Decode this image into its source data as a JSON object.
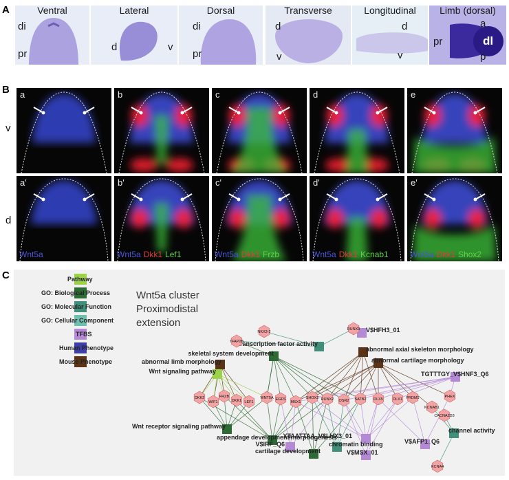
{
  "panel_letters": {
    "a": "A",
    "b": "B",
    "c": "C"
  },
  "panelA": {
    "tiles": [
      {
        "title": "Ventral",
        "labels": [
          "di",
          "pr"
        ]
      },
      {
        "title": "Lateral",
        "labels": [
          "d",
          "v"
        ]
      },
      {
        "title": "Dorsal",
        "labels": [
          "di",
          "pr"
        ]
      },
      {
        "title": "Transverse",
        "labels": [
          "d",
          "v"
        ]
      },
      {
        "title": "Longitudinal",
        "labels": [
          "d",
          "v"
        ]
      },
      {
        "title": "Limb (dorsal)",
        "labels": [
          "a",
          "pr",
          "dl",
          "p"
        ]
      }
    ]
  },
  "panelB": {
    "row_labels": [
      "v",
      "d"
    ],
    "tiles_top": [
      {
        "corner": "a"
      },
      {
        "corner": "b"
      },
      {
        "corner": "c"
      },
      {
        "corner": "d"
      },
      {
        "corner": "e"
      }
    ],
    "tiles_bottom": [
      {
        "corner": "a'",
        "caption": [
          "Wnt5a"
        ]
      },
      {
        "corner": "b'",
        "caption": [
          "Wnt5a",
          "Dkk1",
          "Lef1"
        ]
      },
      {
        "corner": "c'",
        "caption": [
          "Wnt5a",
          "Dkk1",
          "Frzb"
        ]
      },
      {
        "corner": "d'",
        "caption": [
          "Wnt5a",
          "Dkk1",
          "Kcnab1"
        ]
      },
      {
        "corner": "e'",
        "caption": [
          "Wnt5a",
          "Dkk1",
          "Shox2"
        ]
      }
    ]
  },
  "panelC": {
    "title_lines": [
      "Wnt5a cluster",
      "Proximodistal",
      "extension"
    ],
    "legend": [
      {
        "label": "Pathway",
        "color": "#9ad34a"
      },
      {
        "label": "GO: Biological Process",
        "color": "#2e6b34"
      },
      {
        "label": "GO: Molecular Function",
        "color": "#3f8f7a"
      },
      {
        "label": "GO: Cellular Component",
        "color": "#6fbfae"
      },
      {
        "label": "TFBS",
        "color": "#b48ad6"
      },
      {
        "label": "Human Phenotype",
        "color": "#3d3fa6"
      },
      {
        "label": "Mouse Phenotype",
        "color": "#5b3418"
      }
    ],
    "terms": [
      "transcription factor activity",
      "V$HFH3_01",
      "abnormal axial skeleton morphology",
      "skeletal system development",
      "abnormal cartilage morphology",
      "abnormal limb morphology",
      "Wnt signaling pathway",
      "TGTTTGY_V$HNF3_Q6",
      "Wnt receptor signaling pathway",
      "appendage development/morphogenesis",
      "YTAATTAA_V$LHX3_01",
      "channel activity",
      "V$IRF_Q6",
      "chromatin binding",
      "V$AFP1_Q6",
      "V$MSX_01",
      "cartilage development"
    ],
    "genes": [
      "NKX3-2",
      "RUNX3",
      "TFAP2B",
      "DKK2",
      "WIF1",
      "FRZB",
      "DKK1",
      "LEF1",
      "WNT5A",
      "EGFS",
      "MSX1",
      "SHOX2",
      "RUNX2",
      "OSR2",
      "SATB2",
      "DLX5",
      "DLX1",
      "PRDM1",
      "PHEX",
      "KCNAB1",
      "CACNA2D3",
      "KCNA4"
    ]
  }
}
